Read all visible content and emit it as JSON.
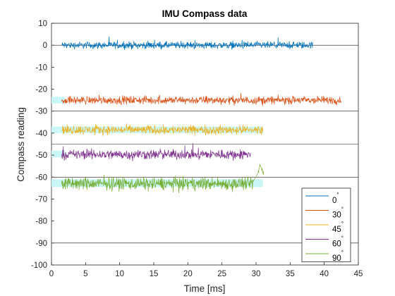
{
  "chart_data": {
    "type": "line",
    "title": "IMU Compass data",
    "xlabel": "Time [ms]",
    "ylabel": "Compass reading",
    "xlim": [
      0,
      45
    ],
    "ylim": [
      -100,
      10
    ],
    "xticks": [
      0,
      5,
      10,
      15,
      20,
      25,
      30,
      35,
      40,
      45
    ],
    "yticks": [
      10,
      0,
      -10,
      -20,
      -30,
      -40,
      -50,
      -60,
      -70,
      -80,
      -90,
      -100
    ],
    "grid": false,
    "legend_position": "bottom-right",
    "reference_lines": [
      0,
      -30,
      -45,
      -60,
      -90
    ],
    "bands": [
      {
        "x_range": [
          0,
          2
        ],
        "y_range": [
          -26.5,
          -23.5
        ]
      },
      {
        "x_range": [
          0,
          31
        ],
        "y_range": [
          -40,
          -37
        ]
      },
      {
        "x_range": [
          0,
          2
        ],
        "y_range": [
          -51,
          -48
        ]
      },
      {
        "x_range": [
          0,
          31
        ],
        "y_range": [
          -64.5,
          -61
        ]
      }
    ],
    "series": [
      {
        "name": "0",
        "unit": "°",
        "color": "#0072bd",
        "x_range": [
          1.5,
          38.3
        ],
        "level": 0,
        "noise": 0.8
      },
      {
        "name": "30",
        "unit": "°",
        "color": "#d95319",
        "x_range": [
          1.5,
          42.5
        ],
        "level": -25,
        "noise": 0.9
      },
      {
        "name": "45",
        "unit": "°",
        "color": "#edb120",
        "x_range": [
          1.5,
          31
        ],
        "level": -38.5,
        "noise": 1.0
      },
      {
        "name": "60",
        "unit": "°",
        "color": "#7e2f8e",
        "x_range": [
          1.5,
          29.2
        ],
        "level": -49.7,
        "noise": 1.1
      },
      {
        "name": "90",
        "unit": "°",
        "color": "#77ac30",
        "x_range": [
          1.5,
          31
        ],
        "level": -63,
        "noise": 1.4,
        "tail": [
          [
            29.5,
            -62
          ],
          [
            30.3,
            -58
          ],
          [
            30.5,
            -55
          ],
          [
            30.8,
            -57
          ],
          [
            31,
            -58
          ]
        ]
      }
    ]
  }
}
